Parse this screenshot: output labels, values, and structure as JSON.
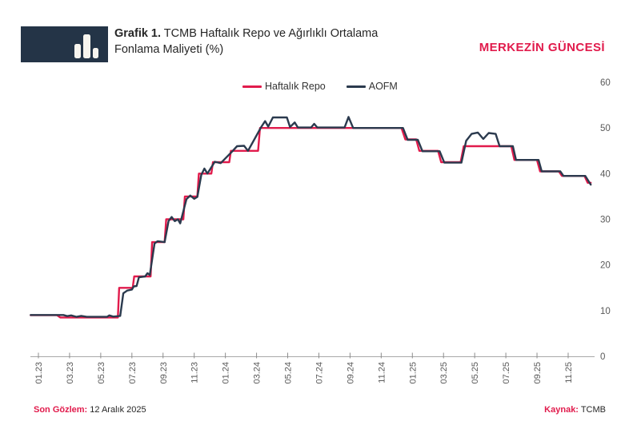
{
  "header": {
    "logo_icon": "bar-chart-icon",
    "title_prefix": "Grafik 1.",
    "title_line1": " TCMB Haftalık Repo ve Ağırlıklı Ortalama",
    "title_line2": "Fonlama Maliyeti (%)",
    "brand": "MERKEZİN GÜNCESİ"
  },
  "footer": {
    "last_obs_label": "Son Gözlem:",
    "last_obs_value": " 12 Aralık 2025",
    "source_label": "Kaynak:",
    "source_value": " TCMB"
  },
  "colors": {
    "accent_red": "#e11b4c",
    "line_navy": "#2b3a4e",
    "logo_bg": "#243447",
    "axis_line": "#a8a8a8",
    "tick_text": "#595959"
  },
  "chart_data": {
    "type": "line",
    "title": "TCMB Haftalık Repo ve Ağırlıklı Ortalama Fonlama Maliyeti (%)",
    "xlabel": "",
    "ylabel": "",
    "ylim": [
      0,
      60
    ],
    "y_ticks": [
      0,
      10,
      20,
      30,
      40,
      50,
      60
    ],
    "grid": false,
    "legend_position": "top",
    "x_unit": "months since 2023-01",
    "x_ticks": [
      {
        "m": 0.5,
        "label": "01.23"
      },
      {
        "m": 2.5,
        "label": "03.23"
      },
      {
        "m": 4.5,
        "label": "05.23"
      },
      {
        "m": 6.5,
        "label": "07.23"
      },
      {
        "m": 8.5,
        "label": "09.23"
      },
      {
        "m": 10.5,
        "label": "11.23"
      },
      {
        "m": 12.5,
        "label": "01.24"
      },
      {
        "m": 14.5,
        "label": "03.24"
      },
      {
        "m": 16.5,
        "label": "05.24"
      },
      {
        "m": 18.5,
        "label": "07.24"
      },
      {
        "m": 20.5,
        "label": "09.24"
      },
      {
        "m": 22.5,
        "label": "11.24"
      },
      {
        "m": 24.5,
        "label": "01.25"
      },
      {
        "m": 26.5,
        "label": "03.25"
      },
      {
        "m": 28.5,
        "label": "05.25"
      },
      {
        "m": 30.5,
        "label": "07.25"
      },
      {
        "m": 32.5,
        "label": "09.25"
      },
      {
        "m": 34.5,
        "label": "11.25"
      }
    ],
    "series": [
      {
        "name": "Haftalık Repo",
        "color": "#e11b4c",
        "points": [
          [
            0,
            9
          ],
          [
            1.7,
            9
          ],
          [
            1.9,
            8.5
          ],
          [
            5.6,
            8.5
          ],
          [
            5.68,
            15
          ],
          [
            6.55,
            15
          ],
          [
            6.65,
            17.5
          ],
          [
            7.7,
            17.5
          ],
          [
            7.8,
            25
          ],
          [
            8.6,
            25
          ],
          [
            8.7,
            30
          ],
          [
            9.8,
            30
          ],
          [
            9.9,
            35
          ],
          [
            10.7,
            35
          ],
          [
            10.8,
            40
          ],
          [
            11.6,
            40
          ],
          [
            11.7,
            42.5
          ],
          [
            12.75,
            42.5
          ],
          [
            12.85,
            45
          ],
          [
            14.6,
            45
          ],
          [
            14.72,
            50
          ],
          [
            23.8,
            50
          ],
          [
            24.05,
            47.5
          ],
          [
            24.75,
            47.5
          ],
          [
            24.95,
            45
          ],
          [
            26.15,
            45
          ],
          [
            26.35,
            42.5
          ],
          [
            27.6,
            42.5
          ],
          [
            27.8,
            46
          ],
          [
            30.85,
            46
          ],
          [
            31.05,
            43
          ],
          [
            32.5,
            43
          ],
          [
            32.7,
            40.5
          ],
          [
            33.9,
            40.5
          ],
          [
            34.1,
            39.5
          ],
          [
            35.55,
            39.5
          ],
          [
            35.75,
            38
          ],
          [
            35.95,
            38
          ]
        ]
      },
      {
        "name": "AOFM",
        "color": "#2b3a4e",
        "points": [
          [
            0,
            9.05
          ],
          [
            2.1,
            9.05
          ],
          [
            2.35,
            8.8
          ],
          [
            2.6,
            8.95
          ],
          [
            2.95,
            8.65
          ],
          [
            3.25,
            8.85
          ],
          [
            3.6,
            8.65
          ],
          [
            4.9,
            8.65
          ],
          [
            5.05,
            8.95
          ],
          [
            5.3,
            8.7
          ],
          [
            5.75,
            8.85
          ],
          [
            5.95,
            13.8
          ],
          [
            6.2,
            14.4
          ],
          [
            6.5,
            14.6
          ],
          [
            6.62,
            15.3
          ],
          [
            6.8,
            15.4
          ],
          [
            6.95,
            17.3
          ],
          [
            7.35,
            17.5
          ],
          [
            7.5,
            18.2
          ],
          [
            7.65,
            17.8
          ],
          [
            7.95,
            24.7
          ],
          [
            8.15,
            25.2
          ],
          [
            8.6,
            25
          ],
          [
            8.85,
            29.6
          ],
          [
            9.05,
            30.5
          ],
          [
            9.25,
            29.6
          ],
          [
            9.45,
            30
          ],
          [
            9.6,
            29.1
          ],
          [
            10,
            34.4
          ],
          [
            10.25,
            35.2
          ],
          [
            10.5,
            34.5
          ],
          [
            10.7,
            34.9
          ],
          [
            10.95,
            39.7
          ],
          [
            11.15,
            41.1
          ],
          [
            11.35,
            40
          ],
          [
            11.82,
            42.6
          ],
          [
            12.2,
            42.3
          ],
          [
            12.95,
            44.9
          ],
          [
            13.25,
            46
          ],
          [
            13.7,
            46.1
          ],
          [
            13.95,
            45
          ],
          [
            14.8,
            50.2
          ],
          [
            15.05,
            51.5
          ],
          [
            15.25,
            50.3
          ],
          [
            15.55,
            52.3
          ],
          [
            16.45,
            52.3
          ],
          [
            16.65,
            50.2
          ],
          [
            16.95,
            51.2
          ],
          [
            17.15,
            50.1
          ],
          [
            18,
            50.1
          ],
          [
            18.2,
            50.9
          ],
          [
            18.4,
            50.1
          ],
          [
            20.15,
            50.1
          ],
          [
            20.4,
            52.4
          ],
          [
            20.7,
            50
          ],
          [
            23.9,
            50
          ],
          [
            24.2,
            47.4
          ],
          [
            24.85,
            47.4
          ],
          [
            25.15,
            44.9
          ],
          [
            26.25,
            44.9
          ],
          [
            26.55,
            42.4
          ],
          [
            27.65,
            42.4
          ],
          [
            27.95,
            47.2
          ],
          [
            28.3,
            48.7
          ],
          [
            28.7,
            49
          ],
          [
            29.05,
            47.6
          ],
          [
            29.4,
            48.9
          ],
          [
            29.85,
            48.7
          ],
          [
            30.1,
            46
          ],
          [
            30.95,
            46
          ],
          [
            31.15,
            43
          ],
          [
            32.6,
            43
          ],
          [
            32.8,
            40.5
          ],
          [
            34,
            40.5
          ],
          [
            34.2,
            39.5
          ],
          [
            35.6,
            39.5
          ],
          [
            35.95,
            37.6
          ]
        ]
      }
    ]
  }
}
